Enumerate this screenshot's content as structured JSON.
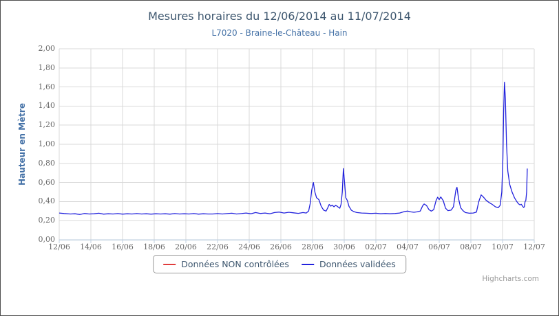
{
  "page": {
    "credits": "Highcharts.com"
  },
  "colors": {
    "title": "#3E576F",
    "subtitle": "#4572A7",
    "y_axis_title": "#4572A7",
    "tick_label": "#666666",
    "gridline": "#D8D8D8",
    "axis_line": "#C0D0E0",
    "series_red": "#E03C3C",
    "series_blue": "#2222DD",
    "legend_text": "#3E576F",
    "border": "#4d4d4d"
  },
  "chart_data": {
    "type": "line",
    "title": "Mesures horaires du 12/06/2014 au 11/07/2014",
    "subtitle": "L7020 - Braine-le-Château - Hain",
    "xlabel": "",
    "ylabel": "Hauteur en Mètre",
    "ylim": [
      0,
      2
    ],
    "y_tick_interval": 0.2,
    "y_tick_labels": [
      "0,00",
      "0,20",
      "0,40",
      "0,60",
      "0,80",
      "1,00",
      "1,20",
      "1,40",
      "1,60",
      "1,80",
      "2,00"
    ],
    "x_range_days": [
      0,
      30
    ],
    "x_tick_interval_days": 2,
    "x_tick_labels": [
      "12/06",
      "14/06",
      "16/06",
      "18/06",
      "20/06",
      "22/06",
      "24/06",
      "26/06",
      "28/06",
      "30/06",
      "02/07",
      "04/07",
      "06/07",
      "08/07",
      "10/07",
      "12/07"
    ],
    "grid": true,
    "legend_position": "bottom-center",
    "series": [
      {
        "name": "Données NON contrôlées",
        "color": "#E03C3C",
        "points": []
      },
      {
        "name": "Données validées",
        "color": "#2222DD",
        "points": [
          [
            0,
            0.28
          ],
          [
            0.3,
            0.275
          ],
          [
            0.7,
            0.27
          ],
          [
            1,
            0.272
          ],
          [
            1.3,
            0.265
          ],
          [
            1.6,
            0.275
          ],
          [
            1.9,
            0.27
          ],
          [
            2.2,
            0.272
          ],
          [
            2.5,
            0.278
          ],
          [
            2.8,
            0.268
          ],
          [
            3.1,
            0.272
          ],
          [
            3.4,
            0.27
          ],
          [
            3.7,
            0.274
          ],
          [
            4,
            0.268
          ],
          [
            4.3,
            0.272
          ],
          [
            4.6,
            0.27
          ],
          [
            4.9,
            0.274
          ],
          [
            5.2,
            0.27
          ],
          [
            5.5,
            0.272
          ],
          [
            5.8,
            0.268
          ],
          [
            6.1,
            0.272
          ],
          [
            6.4,
            0.27
          ],
          [
            6.7,
            0.272
          ],
          [
            7,
            0.268
          ],
          [
            7.3,
            0.274
          ],
          [
            7.6,
            0.27
          ],
          [
            7.9,
            0.272
          ],
          [
            8.2,
            0.27
          ],
          [
            8.5,
            0.274
          ],
          [
            8.8,
            0.268
          ],
          [
            9.1,
            0.272
          ],
          [
            9.4,
            0.27
          ],
          [
            9.7,
            0.27
          ],
          [
            10,
            0.274
          ],
          [
            10.3,
            0.27
          ],
          [
            10.6,
            0.274
          ],
          [
            10.9,
            0.278
          ],
          [
            11.2,
            0.27
          ],
          [
            11.5,
            0.274
          ],
          [
            11.8,
            0.28
          ],
          [
            12.1,
            0.272
          ],
          [
            12.4,
            0.285
          ],
          [
            12.7,
            0.275
          ],
          [
            13,
            0.28
          ],
          [
            13.3,
            0.272
          ],
          [
            13.6,
            0.285
          ],
          [
            13.9,
            0.29
          ],
          [
            14.2,
            0.28
          ],
          [
            14.5,
            0.288
          ],
          [
            14.8,
            0.282
          ],
          [
            15.1,
            0.276
          ],
          [
            15.4,
            0.285
          ],
          [
            15.6,
            0.28
          ],
          [
            15.75,
            0.3
          ],
          [
            15.85,
            0.38
          ],
          [
            15.95,
            0.52
          ],
          [
            16.05,
            0.6
          ],
          [
            16.15,
            0.5
          ],
          [
            16.25,
            0.44
          ],
          [
            16.4,
            0.42
          ],
          [
            16.55,
            0.35
          ],
          [
            16.7,
            0.31
          ],
          [
            16.85,
            0.3
          ],
          [
            16.95,
            0.33
          ],
          [
            17.05,
            0.37
          ],
          [
            17.15,
            0.352
          ],
          [
            17.25,
            0.362
          ],
          [
            17.35,
            0.345
          ],
          [
            17.45,
            0.36
          ],
          [
            17.55,
            0.352
          ],
          [
            17.65,
            0.338
          ],
          [
            17.72,
            0.33
          ],
          [
            17.8,
            0.37
          ],
          [
            17.88,
            0.5
          ],
          [
            17.95,
            0.745
          ],
          [
            18.02,
            0.6
          ],
          [
            18.1,
            0.44
          ],
          [
            18.2,
            0.41
          ],
          [
            18.3,
            0.35
          ],
          [
            18.45,
            0.31
          ],
          [
            18.6,
            0.295
          ],
          [
            18.8,
            0.285
          ],
          [
            19.1,
            0.28
          ],
          [
            19.4,
            0.278
          ],
          [
            19.7,
            0.275
          ],
          [
            20,
            0.278
          ],
          [
            20.3,
            0.272
          ],
          [
            20.6,
            0.275
          ],
          [
            20.9,
            0.272
          ],
          [
            21.2,
            0.275
          ],
          [
            21.5,
            0.28
          ],
          [
            21.8,
            0.295
          ],
          [
            22,
            0.3
          ],
          [
            22.2,
            0.292
          ],
          [
            22.4,
            0.288
          ],
          [
            22.6,
            0.292
          ],
          [
            22.8,
            0.3
          ],
          [
            22.95,
            0.355
          ],
          [
            23.05,
            0.375
          ],
          [
            23.2,
            0.358
          ],
          [
            23.35,
            0.315
          ],
          [
            23.5,
            0.3
          ],
          [
            23.65,
            0.315
          ],
          [
            23.8,
            0.41
          ],
          [
            23.9,
            0.445
          ],
          [
            24,
            0.42
          ],
          [
            24.1,
            0.448
          ],
          [
            24.25,
            0.41
          ],
          [
            24.4,
            0.33
          ],
          [
            24.55,
            0.305
          ],
          [
            24.75,
            0.31
          ],
          [
            24.9,
            0.345
          ],
          [
            25.05,
            0.52
          ],
          [
            25.12,
            0.55
          ],
          [
            25.22,
            0.43
          ],
          [
            25.35,
            0.335
          ],
          [
            25.5,
            0.305
          ],
          [
            25.65,
            0.285
          ],
          [
            25.9,
            0.278
          ],
          [
            26.15,
            0.28
          ],
          [
            26.35,
            0.29
          ],
          [
            26.5,
            0.4
          ],
          [
            26.65,
            0.47
          ],
          [
            26.8,
            0.445
          ],
          [
            26.95,
            0.415
          ],
          [
            27.15,
            0.39
          ],
          [
            27.35,
            0.37
          ],
          [
            27.55,
            0.345
          ],
          [
            27.72,
            0.335
          ],
          [
            27.85,
            0.36
          ],
          [
            27.95,
            0.5
          ],
          [
            28.02,
            0.85
          ],
          [
            28.07,
            1.35
          ],
          [
            28.12,
            1.65
          ],
          [
            28.18,
            1.48
          ],
          [
            28.25,
            1.0
          ],
          [
            28.33,
            0.72
          ],
          [
            28.45,
            0.58
          ],
          [
            28.6,
            0.5
          ],
          [
            28.75,
            0.44
          ],
          [
            28.9,
            0.4
          ],
          [
            29.0,
            0.378
          ],
          [
            29.1,
            0.365
          ],
          [
            29.18,
            0.372
          ],
          [
            29.27,
            0.35
          ],
          [
            29.33,
            0.338
          ],
          [
            29.38,
            0.345
          ],
          [
            29.42,
            0.4
          ],
          [
            29.47,
            0.41
          ],
          [
            29.52,
            0.5
          ],
          [
            29.56,
            0.745
          ]
        ]
      }
    ]
  }
}
